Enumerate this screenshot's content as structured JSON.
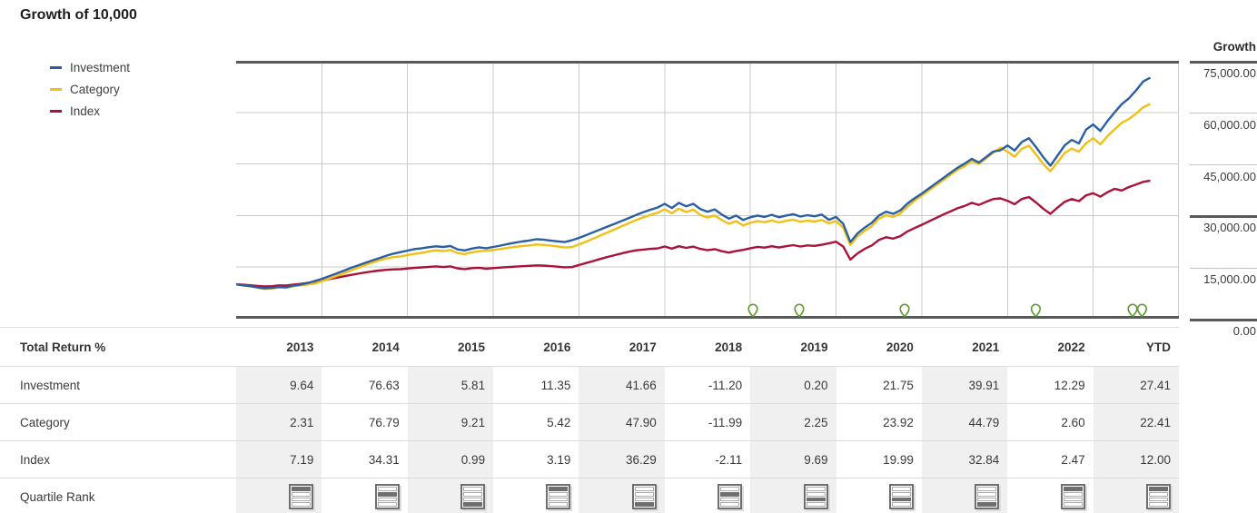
{
  "title": "Growth of 10,000",
  "legend": {
    "items": [
      {
        "label": "Investment",
        "color": "#2A5FA5"
      },
      {
        "label": "Category",
        "color": "#F2C014"
      },
      {
        "label": "Index",
        "color": "#AA1239"
      }
    ]
  },
  "y_axis": {
    "header": "Growth",
    "ticks": [
      {
        "value": 75000,
        "label": "75,000.00",
        "emphasis": true
      },
      {
        "value": 60000,
        "label": "60,000.00",
        "emphasis": false
      },
      {
        "value": 45000,
        "label": "45,000.00",
        "emphasis": false
      },
      {
        "value": 30000,
        "label": "30,000.00",
        "emphasis": true
      },
      {
        "value": 15000,
        "label": "15,000.00",
        "emphasis": false
      },
      {
        "value": 0,
        "label": "0.00",
        "emphasis": true
      }
    ]
  },
  "chart_data": {
    "type": "line",
    "title": "Growth of 10,000",
    "ylabel": "Growth",
    "ylim": [
      0,
      75000
    ],
    "y_gridline_step": 15000,
    "x_start_year": 2013,
    "x_years_span": 11,
    "x_gridlines": "year boundaries 2014-2023",
    "legend_position": "top-left",
    "start_value": 10000,
    "series": [
      {
        "name": "Investment",
        "color": "#2A5FA5",
        "monthly_values": [
          10000,
          9700,
          9450,
          9100,
          8850,
          8950,
          9250,
          9150,
          9600,
          9900,
          10350,
          10964,
          11600,
          12350,
          13100,
          13900,
          14700,
          15450,
          16200,
          16900,
          17600,
          18300,
          18900,
          19365,
          19800,
          20250,
          20500,
          20800,
          21050,
          20850,
          21150,
          20150,
          19850,
          20400,
          20750,
          20490,
          20850,
          21250,
          21700,
          22100,
          22450,
          22750,
          23100,
          23000,
          22750,
          22500,
          22300,
          22816,
          23500,
          24300,
          25150,
          25950,
          26800,
          27600,
          28450,
          29300,
          30150,
          30950,
          31700,
          32321,
          33400,
          32200,
          33700,
          32700,
          33400,
          31900,
          31100,
          31800,
          30300,
          29100,
          30000,
          28701,
          29500,
          30000,
          29600,
          30200,
          29500,
          30000,
          30400,
          29700,
          30100,
          29800,
          30300,
          28758,
          29600,
          27600,
          22300,
          24800,
          26500,
          27900,
          30000,
          31100,
          30500,
          31500,
          33500,
          35013,
          36400,
          37900,
          39400,
          40900,
          42400,
          43900,
          45100,
          46500,
          45400,
          47000,
          48600,
          48987,
          50400,
          48900,
          51400,
          52500,
          49900,
          47000,
          44500,
          47400,
          50400,
          52000,
          51000,
          55008,
          56500,
          54600,
          57500,
          60000,
          62400,
          64100,
          66400,
          69000,
          70086
        ]
      },
      {
        "name": "Category",
        "color": "#F2C014",
        "monthly_values": [
          10000,
          9650,
          9380,
          9000,
          8650,
          8780,
          9080,
          9000,
          9420,
          9680,
          9950,
          10231,
          10900,
          11620,
          12380,
          13160,
          13950,
          14760,
          15560,
          16300,
          16980,
          17520,
          17900,
          18088,
          18500,
          18880,
          19180,
          19560,
          19880,
          19680,
          19980,
          19080,
          18800,
          19300,
          19620,
          19754,
          20000,
          20280,
          20580,
          20880,
          21100,
          21300,
          21580,
          21480,
          21280,
          21020,
          20720,
          20825,
          21600,
          22420,
          23280,
          24180,
          25080,
          25980,
          26900,
          27800,
          28680,
          29480,
          30180,
          30800,
          31800,
          30680,
          31980,
          31020,
          31700,
          30220,
          29420,
          30020,
          28700,
          27600,
          28400,
          27108,
          27900,
          28380,
          28080,
          28580,
          27980,
          28480,
          28800,
          28180,
          28520,
          28280,
          28700,
          27718,
          28400,
          26500,
          21500,
          23900,
          25600,
          26900,
          29100,
          30100,
          29600,
          30600,
          32600,
          34348,
          35800,
          37300,
          38800,
          40300,
          41800,
          43300,
          44400,
          45900,
          45000,
          46600,
          48300,
          49732,
          48600,
          47100,
          49400,
          50300,
          47800,
          45000,
          42900,
          45500,
          48200,
          49500,
          48600,
          51025,
          52500,
          50700,
          53100,
          55100,
          57000,
          58100,
          59600,
          61500,
          62460
        ]
      },
      {
        "name": "Index",
        "color": "#AA1239",
        "monthly_values": [
          10000,
          9880,
          9720,
          9540,
          9380,
          9460,
          9700,
          9640,
          9900,
          10120,
          10420,
          10719,
          11080,
          11480,
          11900,
          12300,
          12700,
          13080,
          13420,
          13720,
          14000,
          14200,
          14340,
          14397,
          14600,
          14780,
          14920,
          15080,
          15200,
          15020,
          15220,
          14620,
          14420,
          14700,
          14820,
          14540,
          14700,
          14860,
          15000,
          15140,
          15260,
          15360,
          15500,
          15440,
          15300,
          15120,
          14960,
          15004,
          15600,
          16180,
          16780,
          17380,
          17960,
          18480,
          18980,
          19480,
          19880,
          20100,
          20300,
          20449,
          21000,
          20380,
          21080,
          20600,
          20980,
          20300,
          19900,
          20220,
          19620,
          19220,
          19700,
          20017,
          20500,
          20880,
          20680,
          21080,
          20700,
          21080,
          21380,
          21000,
          21300,
          21180,
          21500,
          21957,
          22400,
          21000,
          17200,
          19000,
          20300,
          21300,
          22900,
          23700,
          23300,
          24000,
          25400,
          26347,
          27300,
          28300,
          29300,
          30300,
          31200,
          32100,
          32800,
          33700,
          33100,
          34000,
          34800,
          34999,
          34300,
          33300,
          34800,
          35400,
          33800,
          32000,
          30500,
          32300,
          34000,
          34800,
          34200,
          35863,
          36500,
          35500,
          36800,
          37800,
          37300,
          38300,
          39000,
          39800,
          40167
        ]
      }
    ],
    "event_markers": {
      "shape": "pin",
      "color": "#5F9C31",
      "positions_year": [
        2019.03,
        2019.57,
        2020.8,
        2022.33,
        2023.46,
        2023.57
      ]
    }
  },
  "table": {
    "header": [
      "Total Return %",
      "2013",
      "2014",
      "2015",
      "2016",
      "2017",
      "2018",
      "2019",
      "2020",
      "2021",
      "2022",
      "YTD"
    ],
    "rows": [
      {
        "label": "Investment",
        "values": [
          "9.64",
          "76.63",
          "5.81",
          "11.35",
          "41.66",
          "-11.20",
          "0.20",
          "21.75",
          "39.91",
          "12.29",
          "27.41"
        ]
      },
      {
        "label": "Category",
        "values": [
          "2.31",
          "76.79",
          "9.21",
          "5.42",
          "47.90",
          "-11.99",
          "2.25",
          "23.92",
          "44.79",
          "2.60",
          "22.41"
        ]
      },
      {
        "label": "Index",
        "values": [
          "7.19",
          "34.31",
          "0.99",
          "3.19",
          "36.29",
          "-2.11",
          "9.69",
          "19.99",
          "32.84",
          "2.47",
          "12.00"
        ]
      }
    ],
    "quartile_row": {
      "label": "Quartile Rank",
      "ranks": [
        1,
        2,
        4,
        1,
        4,
        2,
        3,
        3,
        4,
        1,
        1
      ]
    },
    "shaded_header_columns": [
      1,
      3,
      5,
      7,
      9,
      11
    ]
  },
  "colors": {
    "grid": "#CBCBCB",
    "axis_border": "#58595B",
    "light_tick": "#C4C4C4",
    "column_shading": "#F0F0F0",
    "row_border": "#DCDCDC"
  }
}
